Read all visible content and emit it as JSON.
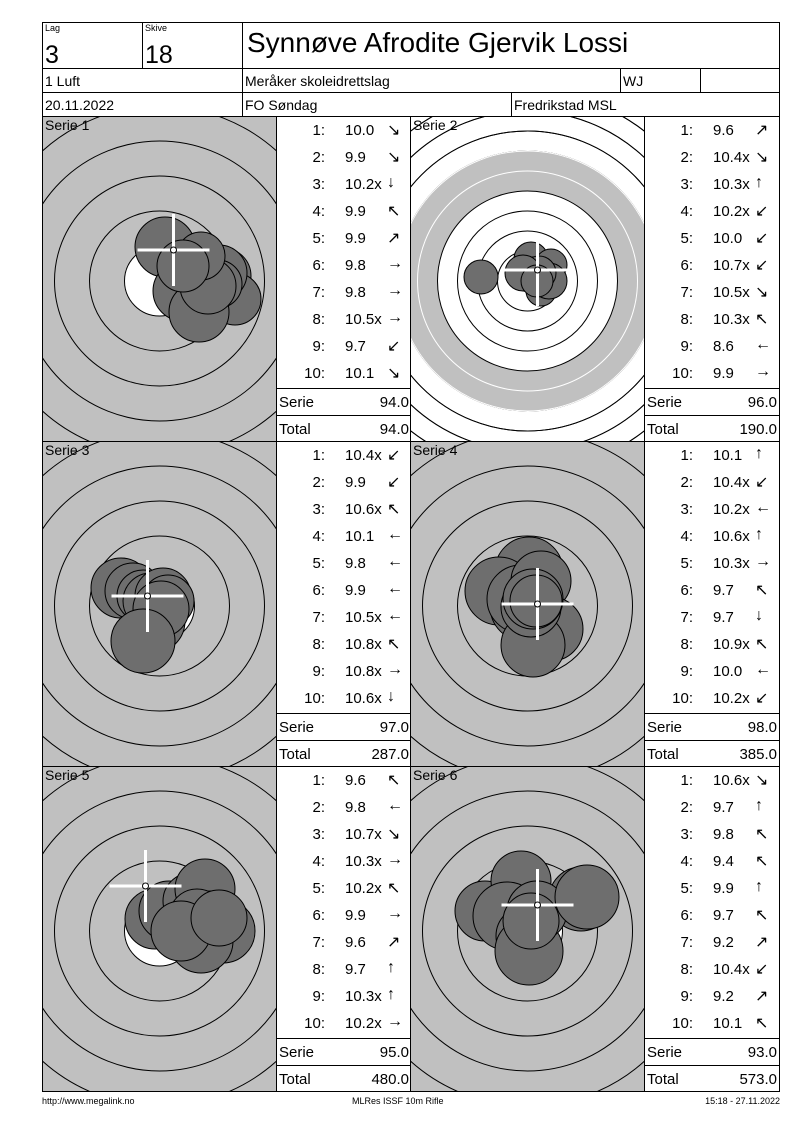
{
  "header": {
    "lag_label": "Lag",
    "lag_value": "3",
    "skive_label": "Skive",
    "skive_value": "18",
    "shooter_name": "Synnøve Afrodite Gjervik Lossi",
    "class": "1 Luft",
    "club": "Meråker skoleidrettslag",
    "code": "WJ",
    "date": "20.11.2022",
    "event": "FO Søndag",
    "venue": "Fredrikstad MSL"
  },
  "series": [
    {
      "label": "Serie 1",
      "serie_label": "Serie",
      "serie_total": "94.0",
      "total_label": "Total",
      "running_total": "94.0",
      "shots": [
        {
          "n": "1:",
          "v": "10.0",
          "a": "↘"
        },
        {
          "n": "2:",
          "v": "9.9",
          "a": "↘"
        },
        {
          "n": "3:",
          "v": "10.2x",
          "a": "↓"
        },
        {
          "n": "4:",
          "v": "9.9",
          "a": "↖"
        },
        {
          "n": "5:",
          "v": "9.9",
          "a": "↗"
        },
        {
          "n": "6:",
          "v": "9.8",
          "a": "→"
        },
        {
          "n": "7:",
          "v": "9.8",
          "a": "→"
        },
        {
          "n": "8:",
          "v": "10.5x",
          "a": "→"
        },
        {
          "n": "9:",
          "v": "9.7",
          "a": "↙"
        },
        {
          "n": "10:",
          "v": "10.1",
          "a": "↘"
        }
      ]
    },
    {
      "label": "Serie 2",
      "serie_label": "Serie",
      "serie_total": "96.0",
      "total_label": "Total",
      "running_total": "190.0",
      "shots": [
        {
          "n": "1:",
          "v": "9.6",
          "a": "↗"
        },
        {
          "n": "2:",
          "v": "10.4x",
          "a": "↘"
        },
        {
          "n": "3:",
          "v": "10.3x",
          "a": "↑"
        },
        {
          "n": "4:",
          "v": "10.2x",
          "a": "↙"
        },
        {
          "n": "5:",
          "v": "10.0",
          "a": "↙"
        },
        {
          "n": "6:",
          "v": "10.7x",
          "a": "↙"
        },
        {
          "n": "7:",
          "v": "10.5x",
          "a": "↘"
        },
        {
          "n": "8:",
          "v": "10.3x",
          "a": "↖"
        },
        {
          "n": "9:",
          "v": "8.6",
          "a": "←"
        },
        {
          "n": "10:",
          "v": "9.9",
          "a": "→"
        }
      ]
    },
    {
      "label": "Serie 3",
      "serie_label": "Serie",
      "serie_total": "97.0",
      "total_label": "Total",
      "running_total": "287.0",
      "shots": [
        {
          "n": "1:",
          "v": "10.4x",
          "a": "↙"
        },
        {
          "n": "2:",
          "v": "9.9",
          "a": "↙"
        },
        {
          "n": "3:",
          "v": "10.6x",
          "a": "↖"
        },
        {
          "n": "4:",
          "v": "10.1",
          "a": "←"
        },
        {
          "n": "5:",
          "v": "9.8",
          "a": "←"
        },
        {
          "n": "6:",
          "v": "9.9",
          "a": "←"
        },
        {
          "n": "7:",
          "v": "10.5x",
          "a": "←"
        },
        {
          "n": "8:",
          "v": "10.8x",
          "a": "↖"
        },
        {
          "n": "9:",
          "v": "10.8x",
          "a": "→"
        },
        {
          "n": "10:",
          "v": "10.6x",
          "a": "↓"
        }
      ]
    },
    {
      "label": "Serie 4",
      "serie_label": "Serie",
      "serie_total": "98.0",
      "total_label": "Total",
      "running_total": "385.0",
      "shots": [
        {
          "n": "1:",
          "v": "10.1",
          "a": "↑"
        },
        {
          "n": "2:",
          "v": "10.4x",
          "a": "↙"
        },
        {
          "n": "3:",
          "v": "10.2x",
          "a": "←"
        },
        {
          "n": "4:",
          "v": "10.6x",
          "a": "↑"
        },
        {
          "n": "5:",
          "v": "10.3x",
          "a": "→"
        },
        {
          "n": "6:",
          "v": "9.7",
          "a": "↖"
        },
        {
          "n": "7:",
          "v": "9.7",
          "a": "↓"
        },
        {
          "n": "8:",
          "v": "10.9x",
          "a": "↖"
        },
        {
          "n": "9:",
          "v": "10.0",
          "a": "←"
        },
        {
          "n": "10:",
          "v": "10.2x",
          "a": "↙"
        }
      ]
    },
    {
      "label": "Serie 5",
      "serie_label": "Serie",
      "serie_total": "95.0",
      "total_label": "Total",
      "running_total": "480.0",
      "shots": [
        {
          "n": "1:",
          "v": "9.6",
          "a": "↖"
        },
        {
          "n": "2:",
          "v": "9.8",
          "a": "←"
        },
        {
          "n": "3:",
          "v": "10.7x",
          "a": "↘"
        },
        {
          "n": "4:",
          "v": "10.3x",
          "a": "→"
        },
        {
          "n": "5:",
          "v": "10.2x",
          "a": "↖"
        },
        {
          "n": "6:",
          "v": "9.9",
          "a": "→"
        },
        {
          "n": "7:",
          "v": "9.6",
          "a": "↗"
        },
        {
          "n": "8:",
          "v": "9.7",
          "a": "↑"
        },
        {
          "n": "9:",
          "v": "10.3x",
          "a": "↑"
        },
        {
          "n": "10:",
          "v": "10.2x",
          "a": "→"
        }
      ]
    },
    {
      "label": "Serie 6",
      "serie_label": "Serie",
      "serie_total": "93.0",
      "total_label": "Total",
      "running_total": "573.0",
      "shots": [
        {
          "n": "1:",
          "v": "10.6x",
          "a": "↘"
        },
        {
          "n": "2:",
          "v": "9.7",
          "a": "↑"
        },
        {
          "n": "3:",
          "v": "9.8",
          "a": "↖"
        },
        {
          "n": "4:",
          "v": "9.4",
          "a": "↖"
        },
        {
          "n": "5:",
          "v": "9.9",
          "a": "↑"
        },
        {
          "n": "6:",
          "v": "9.7",
          "a": "↖"
        },
        {
          "n": "7:",
          "v": "9.2",
          "a": "↗"
        },
        {
          "n": "8:",
          "v": "10.4x",
          "a": "↙"
        },
        {
          "n": "9:",
          "v": "9.2",
          "a": "↗"
        },
        {
          "n": "10:",
          "v": "10.1",
          "a": "↖"
        }
      ]
    }
  ],
  "footer": {
    "url": "http://www.megalink.no",
    "software": "MLRes ISSF 10m Rifle",
    "timestamp": "15:18 - 27.11.2022"
  },
  "colors": {
    "target_gray": "#c0c0c0",
    "shot_gray": "#6e6e6e"
  }
}
